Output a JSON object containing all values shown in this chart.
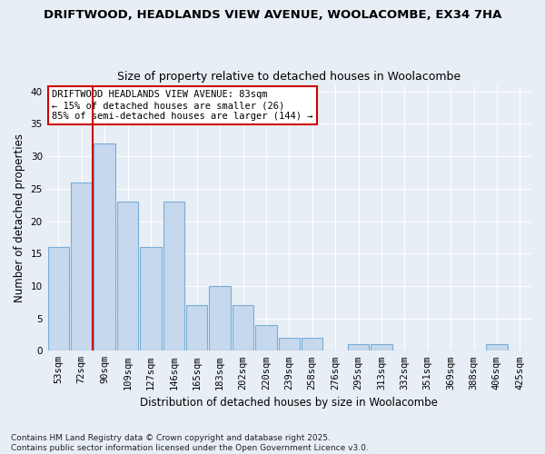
{
  "title1": "DRIFTWOOD, HEADLANDS VIEW AVENUE, WOOLACOMBE, EX34 7HA",
  "title2": "Size of property relative to detached houses in Woolacombe",
  "xlabel": "Distribution of detached houses by size in Woolacombe",
  "ylabel": "Number of detached properties",
  "categories": [
    "53sqm",
    "72sqm",
    "90sqm",
    "109sqm",
    "127sqm",
    "146sqm",
    "165sqm",
    "183sqm",
    "202sqm",
    "220sqm",
    "239sqm",
    "258sqm",
    "276sqm",
    "295sqm",
    "313sqm",
    "332sqm",
    "351sqm",
    "369sqm",
    "388sqm",
    "406sqm",
    "425sqm"
  ],
  "values": [
    16,
    26,
    32,
    23,
    16,
    23,
    7,
    10,
    7,
    4,
    2,
    2,
    0,
    1,
    1,
    0,
    0,
    0,
    0,
    1,
    0
  ],
  "bar_color": "#c5d8ed",
  "bar_edge_color": "#7aadd4",
  "vline_x": 1.5,
  "vline_color": "#cc0000",
  "annotation_text": "DRIFTWOOD HEADLANDS VIEW AVENUE: 83sqm\n← 15% of detached houses are smaller (26)\n85% of semi-detached houses are larger (144) →",
  "annotation_box_facecolor": "white",
  "annotation_box_edgecolor": "#cc0000",
  "ylim": [
    0,
    41
  ],
  "yticks": [
    0,
    5,
    10,
    15,
    20,
    25,
    30,
    35,
    40
  ],
  "footnote": "Contains HM Land Registry data © Crown copyright and database right 2025.\nContains public sector information licensed under the Open Government Licence v3.0.",
  "background_color": "#e8eef5",
  "grid_color": "white",
  "title1_fontsize": 9.5,
  "title2_fontsize": 9,
  "axis_label_fontsize": 8.5,
  "tick_fontsize": 7.5,
  "annotation_fontsize": 7.5,
  "footnote_fontsize": 6.5
}
